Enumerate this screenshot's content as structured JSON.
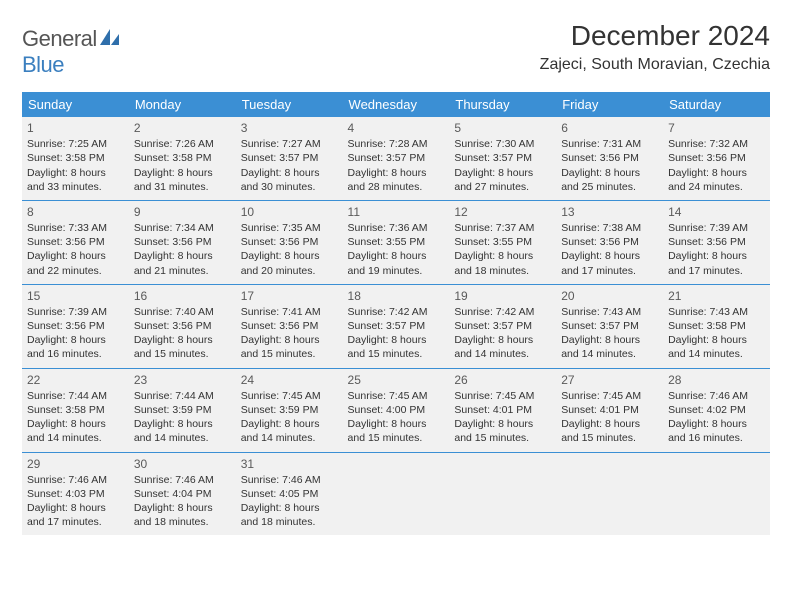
{
  "logo": {
    "text1": "General",
    "text2": "Blue",
    "mark_color": "#2f6fab"
  },
  "header": {
    "title": "December 2024",
    "location": "Zajeci, South Moravian, Czechia"
  },
  "colors": {
    "header_bg": "#3b8fd4",
    "header_fg": "#ffffff",
    "cell_bg": "#f1f1f1",
    "rule": "#3b8fd4",
    "text": "#333333"
  },
  "day_headers": [
    "Sunday",
    "Monday",
    "Tuesday",
    "Wednesday",
    "Thursday",
    "Friday",
    "Saturday"
  ],
  "weeks": [
    [
      {
        "n": "1",
        "sr": "7:25 AM",
        "ss": "3:58 PM",
        "dl": "8 hours and 33 minutes."
      },
      {
        "n": "2",
        "sr": "7:26 AM",
        "ss": "3:58 PM",
        "dl": "8 hours and 31 minutes."
      },
      {
        "n": "3",
        "sr": "7:27 AM",
        "ss": "3:57 PM",
        "dl": "8 hours and 30 minutes."
      },
      {
        "n": "4",
        "sr": "7:28 AM",
        "ss": "3:57 PM",
        "dl": "8 hours and 28 minutes."
      },
      {
        "n": "5",
        "sr": "7:30 AM",
        "ss": "3:57 PM",
        "dl": "8 hours and 27 minutes."
      },
      {
        "n": "6",
        "sr": "7:31 AM",
        "ss": "3:56 PM",
        "dl": "8 hours and 25 minutes."
      },
      {
        "n": "7",
        "sr": "7:32 AM",
        "ss": "3:56 PM",
        "dl": "8 hours and 24 minutes."
      }
    ],
    [
      {
        "n": "8",
        "sr": "7:33 AM",
        "ss": "3:56 PM",
        "dl": "8 hours and 22 minutes."
      },
      {
        "n": "9",
        "sr": "7:34 AM",
        "ss": "3:56 PM",
        "dl": "8 hours and 21 minutes."
      },
      {
        "n": "10",
        "sr": "7:35 AM",
        "ss": "3:56 PM",
        "dl": "8 hours and 20 minutes."
      },
      {
        "n": "11",
        "sr": "7:36 AM",
        "ss": "3:55 PM",
        "dl": "8 hours and 19 minutes."
      },
      {
        "n": "12",
        "sr": "7:37 AM",
        "ss": "3:55 PM",
        "dl": "8 hours and 18 minutes."
      },
      {
        "n": "13",
        "sr": "7:38 AM",
        "ss": "3:56 PM",
        "dl": "8 hours and 17 minutes."
      },
      {
        "n": "14",
        "sr": "7:39 AM",
        "ss": "3:56 PM",
        "dl": "8 hours and 17 minutes."
      }
    ],
    [
      {
        "n": "15",
        "sr": "7:39 AM",
        "ss": "3:56 PM",
        "dl": "8 hours and 16 minutes."
      },
      {
        "n": "16",
        "sr": "7:40 AM",
        "ss": "3:56 PM",
        "dl": "8 hours and 15 minutes."
      },
      {
        "n": "17",
        "sr": "7:41 AM",
        "ss": "3:56 PM",
        "dl": "8 hours and 15 minutes."
      },
      {
        "n": "18",
        "sr": "7:42 AM",
        "ss": "3:57 PM",
        "dl": "8 hours and 15 minutes."
      },
      {
        "n": "19",
        "sr": "7:42 AM",
        "ss": "3:57 PM",
        "dl": "8 hours and 14 minutes."
      },
      {
        "n": "20",
        "sr": "7:43 AM",
        "ss": "3:57 PM",
        "dl": "8 hours and 14 minutes."
      },
      {
        "n": "21",
        "sr": "7:43 AM",
        "ss": "3:58 PM",
        "dl": "8 hours and 14 minutes."
      }
    ],
    [
      {
        "n": "22",
        "sr": "7:44 AM",
        "ss": "3:58 PM",
        "dl": "8 hours and 14 minutes."
      },
      {
        "n": "23",
        "sr": "7:44 AM",
        "ss": "3:59 PM",
        "dl": "8 hours and 14 minutes."
      },
      {
        "n": "24",
        "sr": "7:45 AM",
        "ss": "3:59 PM",
        "dl": "8 hours and 14 minutes."
      },
      {
        "n": "25",
        "sr": "7:45 AM",
        "ss": "4:00 PM",
        "dl": "8 hours and 15 minutes."
      },
      {
        "n": "26",
        "sr": "7:45 AM",
        "ss": "4:01 PM",
        "dl": "8 hours and 15 minutes."
      },
      {
        "n": "27",
        "sr": "7:45 AM",
        "ss": "4:01 PM",
        "dl": "8 hours and 15 minutes."
      },
      {
        "n": "28",
        "sr": "7:46 AM",
        "ss": "4:02 PM",
        "dl": "8 hours and 16 minutes."
      }
    ],
    [
      {
        "n": "29",
        "sr": "7:46 AM",
        "ss": "4:03 PM",
        "dl": "8 hours and 17 minutes."
      },
      {
        "n": "30",
        "sr": "7:46 AM",
        "ss": "4:04 PM",
        "dl": "8 hours and 18 minutes."
      },
      {
        "n": "31",
        "sr": "7:46 AM",
        "ss": "4:05 PM",
        "dl": "8 hours and 18 minutes."
      },
      null,
      null,
      null,
      null
    ]
  ],
  "labels": {
    "sunrise": "Sunrise:",
    "sunset": "Sunset:",
    "daylight": "Daylight:"
  }
}
